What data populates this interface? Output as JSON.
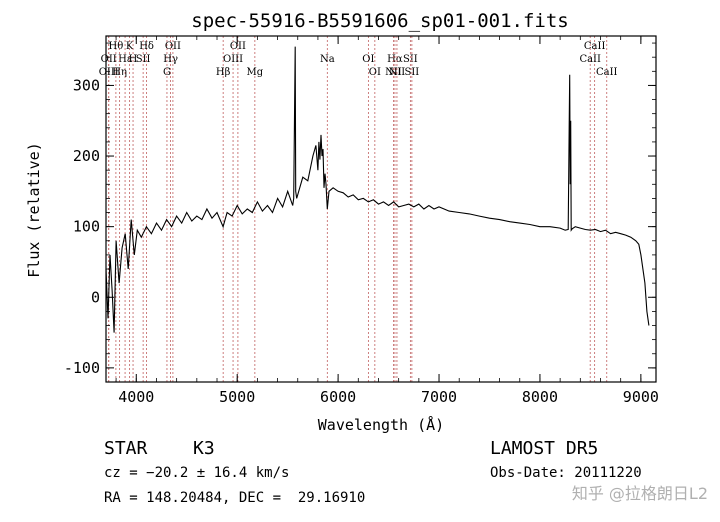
{
  "chart_data": {
    "type": "line",
    "title": "spec-55916-B5591606_sp01-001.fits",
    "xlabel": "Wavelength (Å)",
    "ylabel": "Flux (relative)",
    "xlim": [
      3700,
      9150
    ],
    "ylim": [
      -120,
      370
    ],
    "xticks": [
      4000,
      5000,
      6000,
      7000,
      8000,
      9000
    ],
    "yticks": [
      -100,
      0,
      100,
      200,
      300
    ],
    "grid": false,
    "x": [
      3700,
      3720,
      3740,
      3760,
      3780,
      3800,
      3830,
      3860,
      3890,
      3920,
      3950,
      3980,
      4010,
      4050,
      4100,
      4150,
      4200,
      4250,
      4300,
      4350,
      4400,
      4450,
      4500,
      4550,
      4600,
      4650,
      4700,
      4750,
      4800,
      4860,
      4900,
      4950,
      5000,
      5050,
      5100,
      5150,
      5200,
      5250,
      5300,
      5350,
      5400,
      5450,
      5500,
      5550,
      5560,
      5575,
      5580,
      5590,
      5600,
      5650,
      5700,
      5750,
      5780,
      5800,
      5810,
      5820,
      5830,
      5840,
      5850,
      5860,
      5870,
      5880,
      5893,
      5910,
      5950,
      6000,
      6050,
      6100,
      6150,
      6200,
      6250,
      6300,
      6350,
      6400,
      6450,
      6500,
      6550,
      6600,
      6650,
      6700,
      6750,
      6800,
      6850,
      6900,
      6950,
      7000,
      7100,
      7200,
      7300,
      7400,
      7500,
      7600,
      7700,
      7800,
      7900,
      8000,
      8100,
      8200,
      8250,
      8280,
      8290,
      8295,
      8300,
      8305,
      8310,
      8320,
      8350,
      8400,
      8450,
      8500,
      8550,
      8600,
      8650,
      8700,
      8750,
      8800,
      8850,
      8900,
      8950,
      8980,
      9000,
      9020,
      9040,
      9060,
      9080
    ],
    "y": [
      40,
      -30,
      60,
      10,
      -50,
      80,
      20,
      70,
      90,
      40,
      110,
      60,
      95,
      85,
      100,
      90,
      105,
      95,
      110,
      100,
      115,
      105,
      120,
      108,
      115,
      110,
      125,
      112,
      120,
      100,
      120,
      115,
      130,
      118,
      125,
      120,
      135,
      122,
      130,
      120,
      140,
      128,
      150,
      130,
      140,
      355,
      150,
      140,
      145,
      170,
      165,
      200,
      215,
      180,
      220,
      195,
      230,
      200,
      210,
      155,
      175,
      160,
      125,
      150,
      155,
      150,
      148,
      142,
      145,
      138,
      140,
      135,
      138,
      132,
      135,
      130,
      135,
      128,
      130,
      132,
      128,
      132,
      125,
      130,
      125,
      128,
      122,
      120,
      118,
      115,
      112,
      110,
      107,
      105,
      103,
      100,
      100,
      98,
      95,
      96,
      245,
      315,
      160,
      250,
      95,
      97,
      100,
      98,
      96,
      95,
      96,
      93,
      95,
      90,
      92,
      90,
      88,
      85,
      80,
      75,
      60,
      40,
      20,
      -20,
      -40
    ],
    "lines": [
      {
        "label": "Hθ",
        "wl": 3798,
        "group": 1
      },
      {
        "label": "K",
        "wl": 3934,
        "group": 1
      },
      {
        "label": "Hδ",
        "wl": 4102,
        "group": 1
      },
      {
        "label": "OII",
        "wl": 4363,
        "group": 1
      },
      {
        "label": "OII",
        "wl": 5007,
        "group": 1
      },
      {
        "label": "CaII",
        "wl": 8542,
        "group": 1
      },
      {
        "label": "OII",
        "wl": 3727,
        "group": 2
      },
      {
        "label": "Hε",
        "wl": 3889,
        "group": 2
      },
      {
        "label": "H",
        "wl": 3968,
        "group": 2
      },
      {
        "label": "SII",
        "wl": 4068,
        "group": 2
      },
      {
        "label": "Hγ",
        "wl": 4340,
        "group": 2
      },
      {
        "label": "OIII",
        "wl": 4959,
        "group": 2
      },
      {
        "label": "Na",
        "wl": 5893,
        "group": 2
      },
      {
        "label": "OI",
        "wl": 6300,
        "group": 2
      },
      {
        "label": "Hα",
        "wl": 6563,
        "group": 2
      },
      {
        "label": "SII",
        "wl": 6716,
        "group": 2
      },
      {
        "label": "CaII",
        "wl": 8498,
        "group": 2
      },
      {
        "label": "OIII",
        "wl": 3727,
        "group": 3
      },
      {
        "label": "Hη",
        "wl": 3835,
        "group": 3
      },
      {
        "label": "G",
        "wl": 4304,
        "group": 3
      },
      {
        "label": "Hβ",
        "wl": 4861,
        "group": 3
      },
      {
        "label": "Mg",
        "wl": 5175,
        "group": 3
      },
      {
        "label": "OI",
        "wl": 6364,
        "group": 3
      },
      {
        "label": "NII",
        "wl": 6548,
        "group": 3
      },
      {
        "label": "NII",
        "wl": 6583,
        "group": 3
      },
      {
        "label": "SII",
        "wl": 6731,
        "group": 3
      },
      {
        "label": "CaII",
        "wl": 8662,
        "group": 3
      }
    ]
  },
  "info": {
    "class_label": "STAR",
    "subclass": "K3",
    "survey": "LAMOST DR5",
    "cz": "cz = −20.2 ± 16.4 km/s",
    "coords": "RA = 148.20484, DEC =  29.16910",
    "obs_date": "Obs-Date: 20111220"
  },
  "watermark": "知乎 @拉格朗日L2"
}
